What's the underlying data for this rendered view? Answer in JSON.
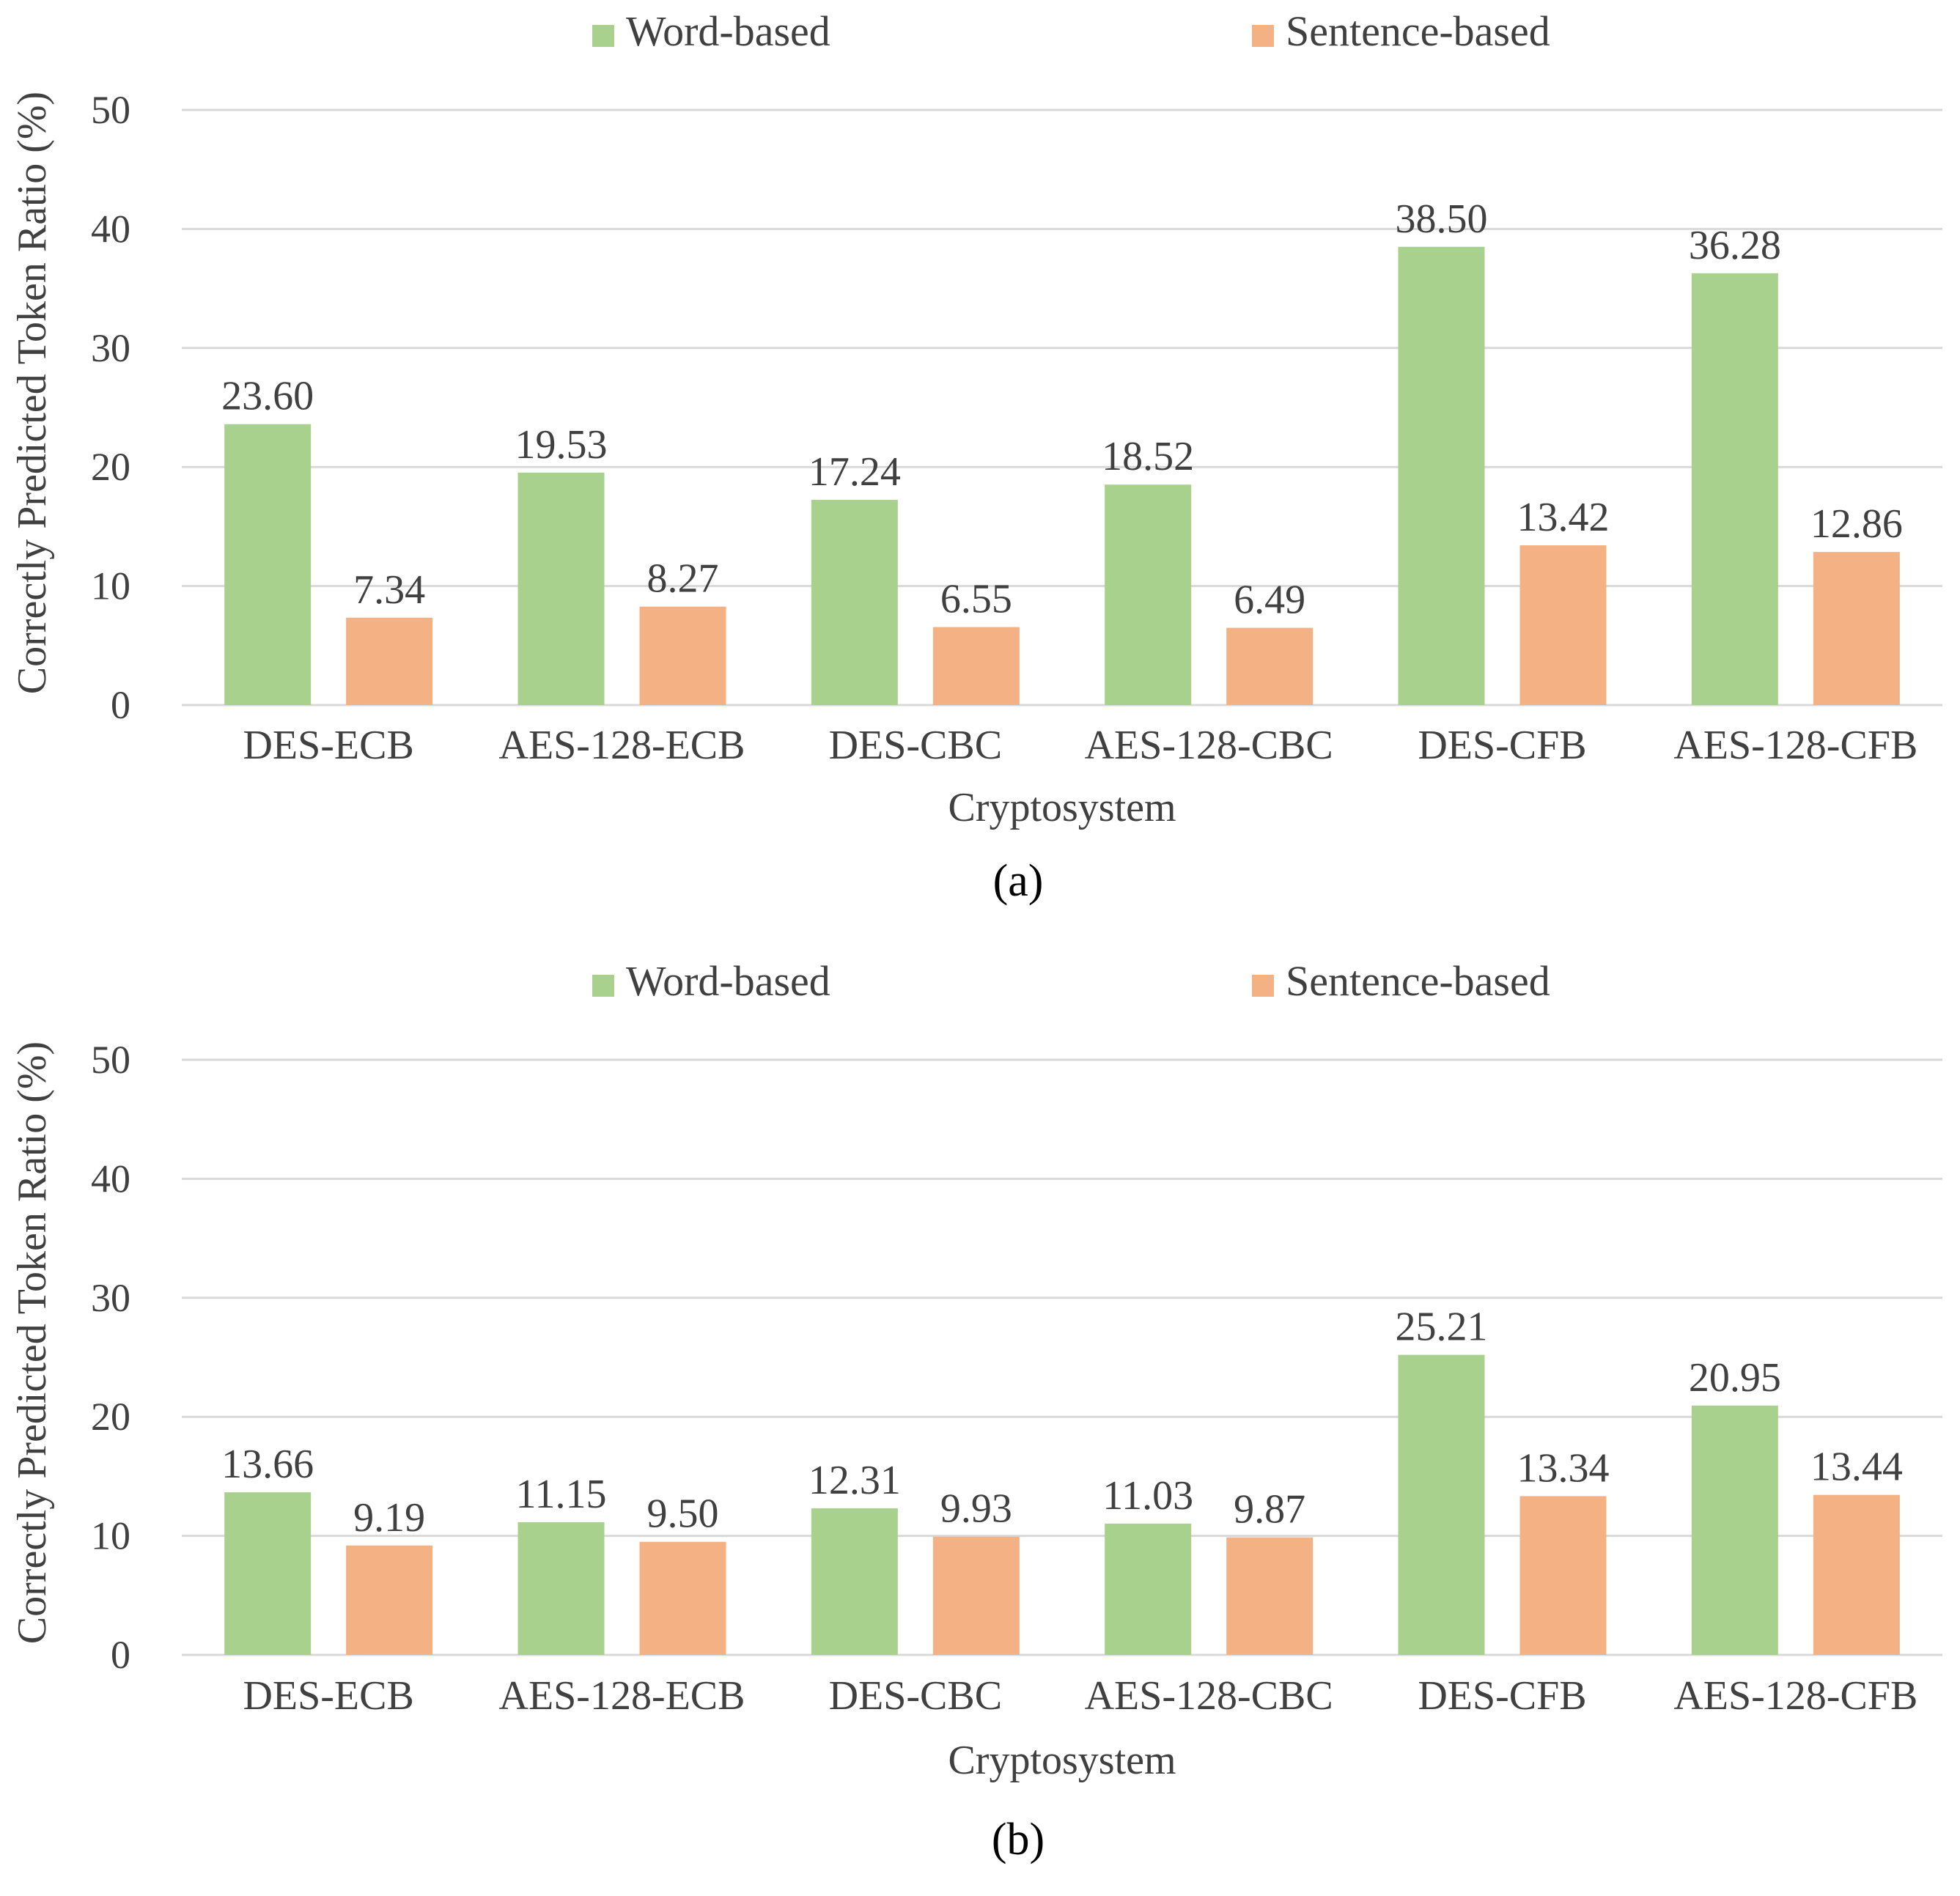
{
  "chart_data": [
    {
      "type": "bar",
      "caption": "(a)",
      "categories": [
        "DES-ECB",
        "AES-128-ECB",
        "DES-CBC",
        "AES-128-CBC",
        "DES-CFB",
        "AES-128-CFB"
      ],
      "series": [
        {
          "name": "Word-based",
          "color": "#a9d18e",
          "values": [
            23.6,
            19.53,
            17.24,
            18.52,
            38.5,
            36.28
          ]
        },
        {
          "name": "Sentence-based",
          "color": "#f4b183",
          "values": [
            7.34,
            8.27,
            6.55,
            6.49,
            13.42,
            12.86
          ]
        }
      ],
      "xlabel": "Cryptosystem",
      "ylabel": "Correctly Predicted Token Ratio (%)",
      "ylim": [
        0,
        50
      ],
      "yticks": [
        0,
        10,
        20,
        30,
        40,
        50
      ],
      "grid": true,
      "legend_position": "top-center"
    },
    {
      "type": "bar",
      "caption": "(b)",
      "categories": [
        "DES-ECB",
        "AES-128-ECB",
        "DES-CBC",
        "AES-128-CBC",
        "DES-CFB",
        "AES-128-CFB"
      ],
      "series": [
        {
          "name": "Word-based",
          "color": "#a9d18e",
          "values": [
            13.66,
            11.15,
            12.31,
            11.03,
            25.21,
            20.95
          ]
        },
        {
          "name": "Sentence-based",
          "color": "#f4b183",
          "values": [
            9.19,
            9.5,
            9.93,
            9.87,
            13.34,
            13.44
          ]
        }
      ],
      "xlabel": "Cryptosystem",
      "ylabel": "Correctly Predicted Token Ratio (%)",
      "ylim": [
        0,
        50
      ],
      "yticks": [
        0,
        10,
        20,
        30,
        40,
        50
      ],
      "grid": true,
      "legend_position": "top-center"
    }
  ]
}
